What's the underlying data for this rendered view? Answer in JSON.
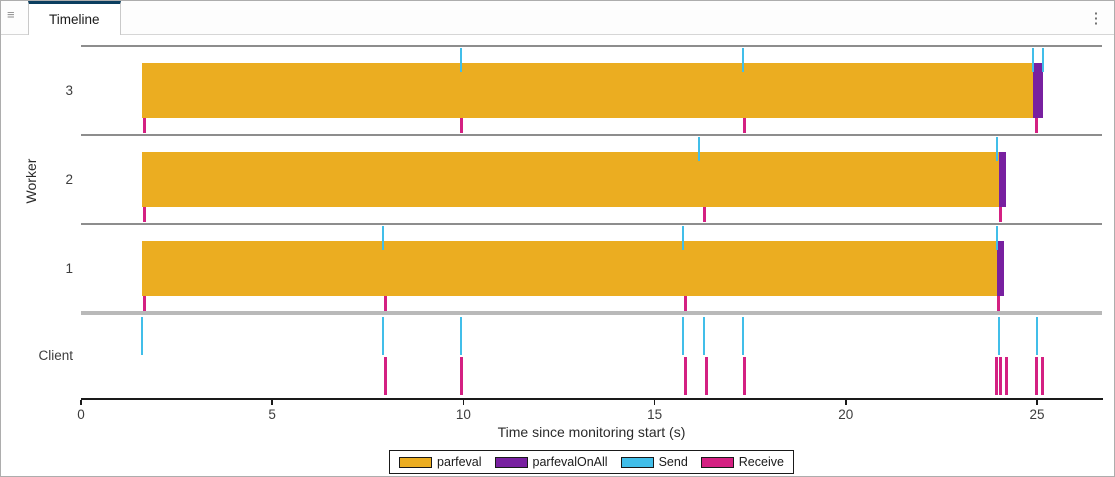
{
  "header": {
    "tab_label": "Timeline",
    "panel_menu_icon": "≡",
    "kebab_icon": "⋮",
    "accent_color": "#0b3e5f"
  },
  "chart_data": {
    "type": "timeline",
    "title": "",
    "xlabel": "Time since monitoring start (s)",
    "ylabel": "Worker",
    "xlim": [
      0,
      26.7
    ],
    "xticks": [
      0,
      5,
      10,
      15,
      20,
      25
    ],
    "grid": false,
    "legend_position": "bottom",
    "lanes": [
      {
        "label": "3",
        "bars": [
          {
            "series": "parfeval",
            "start": 1.6,
            "end": 24.9
          },
          {
            "series": "parfevalOnAll",
            "start": 24.9,
            "end": 25.15
          }
        ],
        "sends": [
          9.95,
          17.3,
          24.9,
          25.15
        ],
        "receives": [
          1.65,
          9.95,
          17.35,
          25.0
        ]
      },
      {
        "label": "2",
        "bars": [
          {
            "series": "parfeval",
            "start": 1.6,
            "end": 24.0
          },
          {
            "series": "parfevalOnAll",
            "start": 24.0,
            "end": 24.2
          }
        ],
        "sends": [
          16.15,
          23.95
        ],
        "receives": [
          1.65,
          16.3,
          24.05
        ]
      },
      {
        "label": "1",
        "bars": [
          {
            "series": "parfeval",
            "start": 1.6,
            "end": 23.95
          },
          {
            "series": "parfevalOnAll",
            "start": 23.95,
            "end": 24.15
          }
        ],
        "sends": [
          7.9,
          15.75,
          23.95
        ],
        "receives": [
          1.65,
          7.95,
          15.8,
          24.0
        ]
      },
      {
        "label": "Client",
        "bars": [],
        "sends": [
          1.6,
          7.9,
          9.95,
          15.75,
          16.3,
          17.3,
          24.0,
          25.0
        ],
        "receives": [
          7.95,
          9.95,
          15.8,
          16.35,
          17.35,
          23.95,
          24.05,
          24.2,
          25.0,
          25.15
        ]
      }
    ],
    "legend": [
      {
        "label": "parfeval",
        "color": "#EBAD21"
      },
      {
        "label": "parfevalOnAll",
        "color": "#7820A0"
      },
      {
        "label": "Send",
        "color": "#41BEE9"
      },
      {
        "label": "Receive",
        "color": "#D42082"
      }
    ]
  }
}
